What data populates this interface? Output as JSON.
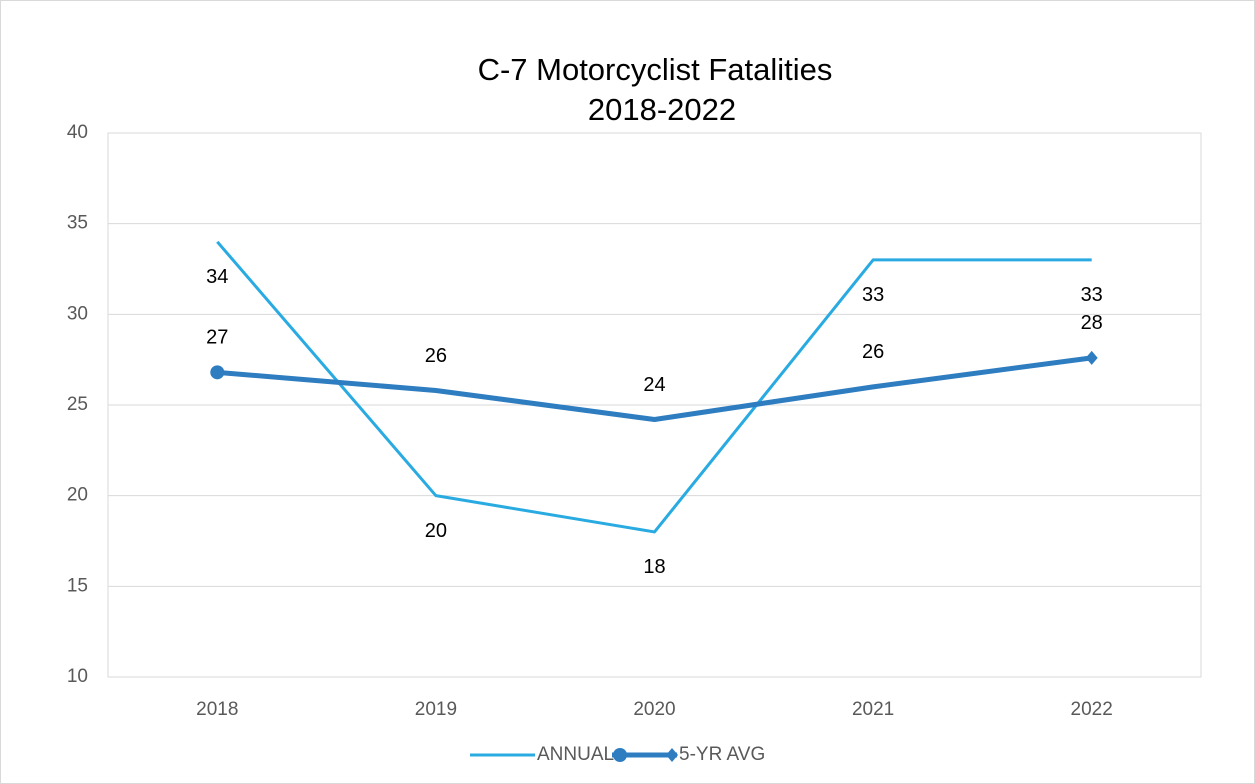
{
  "chart_data": {
    "type": "line",
    "title": "C-7 Motorcyclist Fatalities",
    "subtitle": "2018-2022",
    "categories": [
      "2018",
      "2019",
      "2020",
      "2021",
      "2022"
    ],
    "series": [
      {
        "name": "ANNUAL",
        "color": "#29abe2",
        "values": [
          34,
          20,
          18,
          33,
          33
        ]
      },
      {
        "name": "5-YR AVG",
        "color": "#2e7dc0",
        "values": [
          26.8,
          25.8,
          24.2,
          26.0,
          27.6
        ],
        "value_labels": [
          "27",
          "26",
          "24",
          "26",
          "28"
        ]
      }
    ],
    "ylim": [
      10,
      40
    ],
    "yticks": [
      10,
      15,
      20,
      25,
      30,
      35,
      40
    ],
    "grid": true,
    "legend": "bottom"
  }
}
